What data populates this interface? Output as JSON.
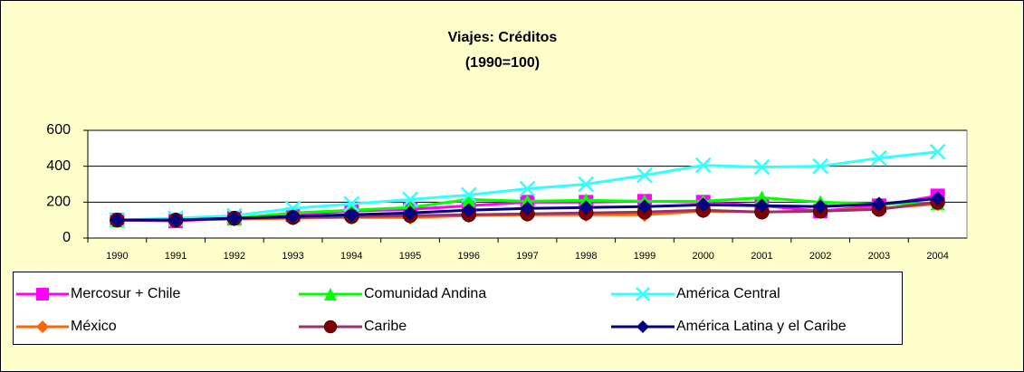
{
  "chart_data": {
    "type": "line",
    "title": "Viajes: Créditos",
    "subtitle": "(1990=100)",
    "categories": [
      "1990",
      "1991",
      "1992",
      "1993",
      "1994",
      "1995",
      "1996",
      "1997",
      "1998",
      "1999",
      "2000",
      "2001",
      "2002",
      "2003",
      "2004"
    ],
    "ylim": [
      0,
      600
    ],
    "yticks": [
      0,
      200,
      400,
      600
    ],
    "grid": true,
    "legend": "bottom",
    "series": [
      {
        "name": "Mercosur + Chile",
        "color": "#FF00FF",
        "marker": "square",
        "values": [
          100,
          95,
          110,
          130,
          150,
          160,
          180,
          200,
          200,
          205,
          200,
          180,
          150,
          180,
          235
        ]
      },
      {
        "name": "Comunidad Andina",
        "color": "#00FF00",
        "marker": "triangle",
        "values": [
          100,
          105,
          110,
          140,
          155,
          170,
          215,
          205,
          210,
          205,
          205,
          225,
          200,
          190,
          195
        ]
      },
      {
        "name": "América Central",
        "color": "#33FFFF",
        "marker": "x",
        "values": [
          100,
          110,
          125,
          165,
          190,
          215,
          240,
          275,
          300,
          350,
          405,
          395,
          400,
          445,
          480
        ]
      },
      {
        "name": "México",
        "color": "#FF6600",
        "marker": "diamond",
        "values": [
          100,
          100,
          105,
          110,
          115,
          115,
          125,
          130,
          130,
          130,
          150,
          145,
          150,
          165,
          190
        ]
      },
      {
        "name": "Caribe",
        "color": "#993366",
        "marker": "circle",
        "marker_color": "#800000",
        "values": [
          100,
          100,
          110,
          115,
          120,
          125,
          130,
          135,
          140,
          145,
          155,
          145,
          150,
          160,
          200
        ]
      },
      {
        "name": "América Latina y el Caribe",
        "color": "#000080",
        "marker": "diamond",
        "values": [
          100,
          100,
          110,
          120,
          130,
          140,
          155,
          165,
          170,
          175,
          185,
          180,
          175,
          190,
          220
        ]
      }
    ]
  }
}
